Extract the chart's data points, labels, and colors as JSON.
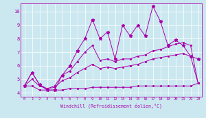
{
  "xlabel": "Windchill (Refroidissement éolien,°C)",
  "background_color": "#cbe8f0",
  "line_color": "#aa00aa",
  "xlim": [
    -0.5,
    23.5
  ],
  "ylim": [
    3.7,
    10.6
  ],
  "xticks": [
    0,
    1,
    2,
    3,
    4,
    5,
    6,
    7,
    8,
    9,
    10,
    11,
    12,
    13,
    14,
    15,
    16,
    17,
    18,
    19,
    20,
    21,
    22,
    23
  ],
  "yticks": [
    4,
    5,
    6,
    7,
    8,
    9,
    10
  ],
  "x": [
    0,
    1,
    2,
    3,
    4,
    5,
    6,
    7,
    8,
    9,
    10,
    11,
    12,
    13,
    14,
    15,
    16,
    17,
    18,
    19,
    20,
    21,
    22,
    23
  ],
  "line_main": [
    4.5,
    5.5,
    4.6,
    4.2,
    4.2,
    5.3,
    6.0,
    7.1,
    8.0,
    9.4,
    8.0,
    8.5,
    6.5,
    9.0,
    8.2,
    9.0,
    8.2,
    10.4,
    9.3,
    7.5,
    7.9,
    7.5,
    6.7,
    6.5
  ],
  "line_upper": [
    4.5,
    5.5,
    4.6,
    4.3,
    4.5,
    5.3,
    5.6,
    6.3,
    7.0,
    7.5,
    6.4,
    6.5,
    6.3,
    6.5,
    6.5,
    6.7,
    6.8,
    7.1,
    7.2,
    7.4,
    7.6,
    7.7,
    7.5,
    4.7
  ],
  "line_mid": [
    4.5,
    5.0,
    4.5,
    4.3,
    4.4,
    4.9,
    5.1,
    5.5,
    5.8,
    6.1,
    5.8,
    5.9,
    5.8,
    5.9,
    6.0,
    6.1,
    6.3,
    6.5,
    6.6,
    6.7,
    6.8,
    6.9,
    6.7,
    4.7
  ],
  "line_lower": [
    4.5,
    4.5,
    4.2,
    4.2,
    4.2,
    4.2,
    4.3,
    4.3,
    4.3,
    4.4,
    4.4,
    4.4,
    4.4,
    4.4,
    4.4,
    4.5,
    4.5,
    4.5,
    4.5,
    4.5,
    4.5,
    4.5,
    4.5,
    4.7
  ]
}
